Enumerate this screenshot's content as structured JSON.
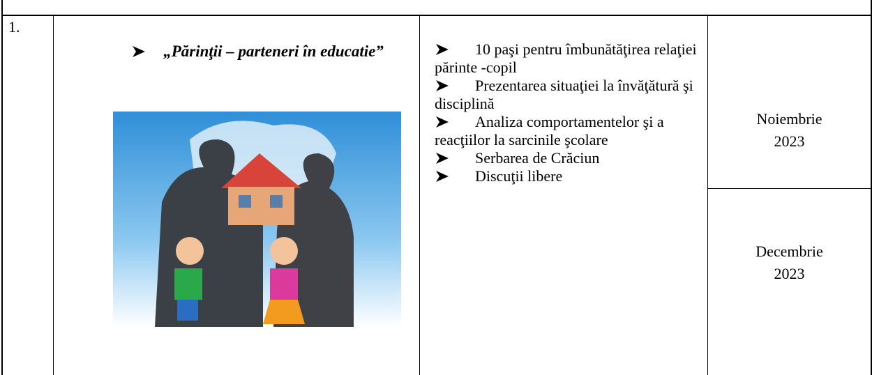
{
  "table": {
    "rows": [
      {
        "number": "1.",
        "title": "„Părinţii – parteneri în educatie”",
        "activities": [
          "10 paşi pentru îmbunătăţirea relaţiei părinte -copil",
          "Prezentarea situaţiei la învăţătură şi disciplină",
          "Analiza comportamentelor şi a reacţiilor la sarcinile şcolare",
          "Serbarea de Crăciun",
          "Discuţii  libere"
        ],
        "dates": [
          "Noiembrie 2023",
          "Decembrie 2023"
        ]
      }
    ]
  }
}
